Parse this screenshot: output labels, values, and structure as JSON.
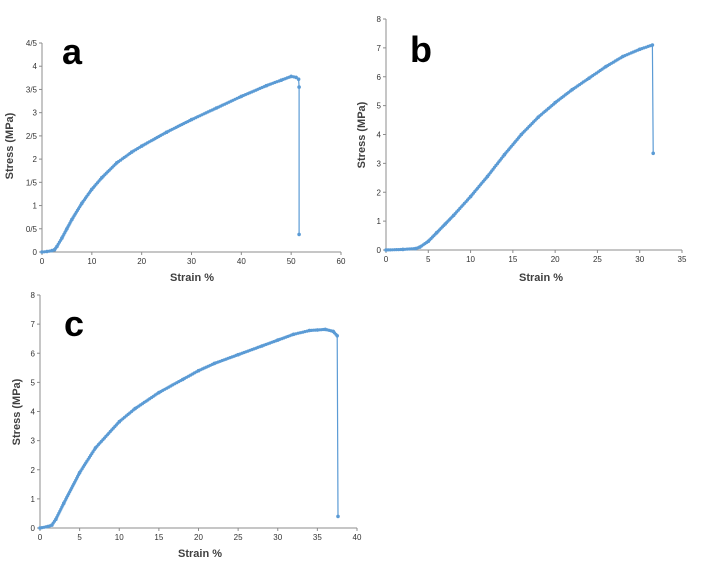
{
  "chart_data": [
    {
      "type": "line",
      "panel_label": "a",
      "title": "",
      "xlabel": "Strain %",
      "ylabel": "Stress (MPa)",
      "xlim": [
        0,
        60
      ],
      "ylim": [
        0,
        4.5
      ],
      "x_ticks": [
        0,
        10,
        20,
        30,
        40,
        50,
        60
      ],
      "x_tick_labels": [
        "0",
        "10",
        "20",
        "30",
        "40",
        "50",
        "60"
      ],
      "y_ticks": [
        0,
        0.5,
        1,
        1.5,
        2,
        2.5,
        3,
        3.5,
        4,
        4.5
      ],
      "y_tick_labels": [
        "0",
        "0/5",
        "1",
        "1/5",
        "2",
        "2/5",
        "3",
        "3/5",
        "4",
        "4/5"
      ],
      "grid": false,
      "color": "#5b9bd5",
      "series": [
        {
          "name": "a",
          "x": [
            0,
            1,
            2,
            2.5,
            3,
            4,
            5,
            6,
            8,
            10,
            12,
            15,
            18,
            20,
            25,
            30,
            35,
            40,
            45,
            48,
            50,
            51,
            51.5,
            51.6,
            51.6
          ],
          "y": [
            0,
            0.01,
            0.03,
            0.05,
            0.12,
            0.3,
            0.5,
            0.7,
            1.05,
            1.35,
            1.6,
            1.92,
            2.15,
            2.28,
            2.58,
            2.85,
            3.1,
            3.35,
            3.58,
            3.7,
            3.78,
            3.76,
            3.72,
            3.55,
            0.38
          ]
        }
      ]
    },
    {
      "type": "line",
      "panel_label": "b",
      "title": "",
      "xlabel": "Strain %",
      "ylabel": "Stress (MPa)",
      "xlim": [
        0,
        35
      ],
      "ylim": [
        0,
        8
      ],
      "x_ticks": [
        0,
        5,
        10,
        15,
        20,
        25,
        30,
        35
      ],
      "x_tick_labels": [
        "0",
        "5",
        "10",
        "15",
        "20",
        "25",
        "30",
        "35"
      ],
      "y_ticks": [
        0,
        1,
        2,
        3,
        4,
        5,
        6,
        7,
        8
      ],
      "y_tick_labels": [
        "0",
        "1",
        "2",
        "3",
        "4",
        "5",
        "6",
        "7",
        "8"
      ],
      "grid": false,
      "color": "#5b9bd5",
      "series": [
        {
          "name": "b",
          "x": [
            0,
            2,
            3.5,
            4,
            5,
            6,
            7,
            8,
            10,
            12,
            14,
            16,
            18,
            20,
            22,
            24,
            26,
            28,
            30,
            31.5,
            31.6
          ],
          "y": [
            0,
            0.02,
            0.05,
            0.1,
            0.3,
            0.6,
            0.9,
            1.2,
            1.85,
            2.55,
            3.3,
            4.0,
            4.6,
            5.1,
            5.55,
            5.95,
            6.35,
            6.7,
            6.95,
            7.1,
            3.35
          ]
        }
      ]
    },
    {
      "type": "line",
      "panel_label": "c",
      "title": "",
      "xlabel": "Strain %",
      "ylabel": "Stress (MPa)",
      "xlim": [
        0,
        40
      ],
      "ylim": [
        0,
        8
      ],
      "x_ticks": [
        0,
        5,
        10,
        15,
        20,
        25,
        30,
        35,
        40
      ],
      "x_tick_labels": [
        "0",
        "5",
        "10",
        "15",
        "20",
        "25",
        "30",
        "35",
        "40"
      ],
      "y_ticks": [
        0,
        1,
        2,
        3,
        4,
        5,
        6,
        7,
        8
      ],
      "y_tick_labels": [
        "0",
        "1",
        "2",
        "3",
        "4",
        "5",
        "6",
        "7",
        "8"
      ],
      "grid": false,
      "color": "#5b9bd5",
      "series": [
        {
          "name": "c",
          "x": [
            0,
            1,
            1.5,
            2,
            3,
            5,
            7,
            10,
            12,
            15,
            18,
            20,
            22,
            25,
            28,
            30,
            32,
            34,
            35,
            36,
            37,
            37.5,
            37.6
          ],
          "y": [
            0,
            0.05,
            0.1,
            0.3,
            0.85,
            1.9,
            2.75,
            3.65,
            4.1,
            4.65,
            5.1,
            5.4,
            5.65,
            5.95,
            6.25,
            6.45,
            6.65,
            6.78,
            6.8,
            6.82,
            6.75,
            6.6,
            0.4
          ]
        }
      ]
    }
  ]
}
